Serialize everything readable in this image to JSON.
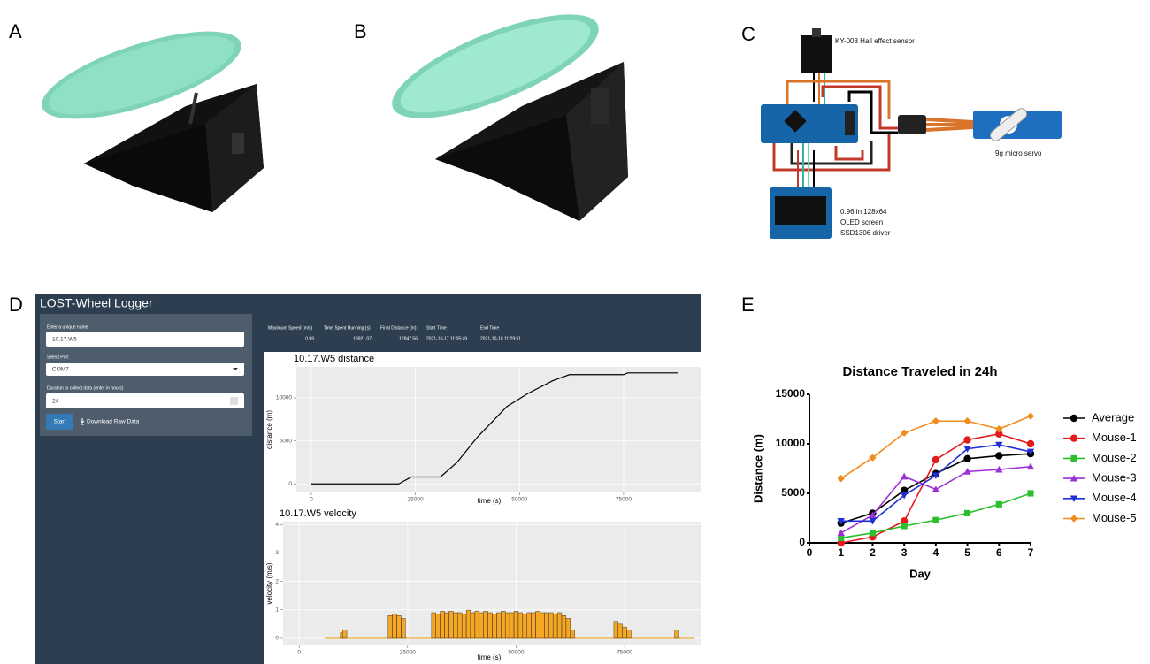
{
  "panel_labels": [
    "A",
    "B",
    "C",
    "D",
    "E"
  ],
  "circuit": {
    "sensor_label": "KY-003 Hall effect sensor",
    "servo_label": "9g micro servo",
    "screen_label": [
      "0.96 in 128x64",
      "OLED screen",
      "SSD1306 driver"
    ]
  },
  "app": {
    "title": "LOST-Wheel Logger",
    "fields": [
      {
        "label": "Enter a unique name",
        "value": "10.17.W5"
      },
      {
        "label": "Select Port",
        "value": "COM7"
      },
      {
        "label": "Duration to collect data (enter in hours)",
        "value": "24"
      }
    ],
    "start_button": "Start",
    "download_button": "Download Raw Data",
    "stats": {
      "headers": [
        "Maximum Speed (m/s)",
        "Time Spent Running (s)",
        "Final Distance (m)",
        "Start Time",
        "End Time"
      ],
      "values": [
        "0.99",
        "18921.07",
        "12847.56",
        "2021-10-17 11:05:49",
        "2021-10-18 11:29:51"
      ]
    }
  },
  "chart_data": [
    {
      "type": "line",
      "title": "10.17.W5 distance",
      "x_label": "time (s)",
      "y_label": "distance (m)",
      "x": [
        0,
        21000,
        24000,
        31000,
        35000,
        40000,
        47000,
        52000,
        58000,
        62000,
        75000,
        76000,
        88000
      ],
      "values": [
        0,
        0,
        800,
        800,
        2500,
        5500,
        9000,
        10500,
        12000,
        12700,
        12700,
        12900,
        12900
      ],
      "color": "#000000",
      "xlim": [
        -3600,
        93500
      ],
      "ylim": [
        -1000,
        13600
      ],
      "xticks": [
        0,
        25000,
        50000,
        75000
      ],
      "yticks": [
        0,
        5000,
        10000
      ],
      "grid": true
    },
    {
      "type": "bar",
      "title": "10.17.W5 velocity",
      "x_label": "time (s)",
      "y_label": "velocity (m/s)",
      "x": [
        10000,
        10500,
        21000,
        22000,
        23000,
        24000,
        31000,
        32000,
        33000,
        34000,
        35000,
        36000,
        37000,
        38000,
        39000,
        40000,
        41000,
        42000,
        43000,
        44000,
        45000,
        46000,
        47000,
        48000,
        49000,
        50000,
        51000,
        52000,
        53000,
        54000,
        55000,
        56000,
        57000,
        58000,
        59000,
        60000,
        61000,
        62000,
        63000,
        73000,
        74000,
        75000,
        76000,
        87000
      ],
      "values": [
        0.2,
        0.3,
        0.8,
        0.85,
        0.8,
        0.7,
        0.9,
        0.85,
        0.95,
        0.9,
        0.95,
        0.9,
        0.9,
        0.85,
        0.99,
        0.9,
        0.95,
        0.9,
        0.95,
        0.9,
        0.85,
        0.9,
        0.95,
        0.9,
        0.9,
        0.95,
        0.9,
        0.85,
        0.9,
        0.9,
        0.95,
        0.9,
        0.9,
        0.9,
        0.85,
        0.9,
        0.8,
        0.7,
        0.3,
        0.6,
        0.5,
        0.4,
        0.3,
        0.3
      ],
      "color": "#f5a623",
      "xlim": [
        -3700,
        92500
      ],
      "ylim": [
        -0.25,
        4.1
      ],
      "xticks": [
        0,
        25000,
        50000,
        75000
      ],
      "yticks": [
        0,
        1,
        2,
        3,
        4
      ],
      "grid": true
    },
    {
      "type": "line",
      "title": "Distance Traveled in 24h",
      "x_label": "Day",
      "y_label": "Distance (m)",
      "x": [
        1,
        2,
        3,
        4,
        5,
        6,
        7
      ],
      "xlim": [
        0,
        7
      ],
      "ylim": [
        0,
        15000
      ],
      "xticks": [
        0,
        1,
        2,
        3,
        4,
        5,
        6,
        7
      ],
      "yticks": [
        0,
        5000,
        10000,
        15000
      ],
      "grid": false,
      "legend": "right",
      "series": [
        {
          "name": "Average",
          "color": "#000000",
          "marker": "circle",
          "values": [
            2000,
            3000,
            5300,
            7000,
            8500,
            8800,
            9000
          ]
        },
        {
          "name": "Mouse-1",
          "color": "#e41a1c",
          "marker": "circle",
          "values": [
            0,
            600,
            2200,
            8400,
            10400,
            11000,
            10000
          ]
        },
        {
          "name": "Mouse-2",
          "color": "#2cbf2c",
          "marker": "square",
          "values": [
            500,
            1000,
            1700,
            2300,
            3000,
            3900,
            5000
          ]
        },
        {
          "name": "Mouse-3",
          "color": "#9b30d9",
          "marker": "triangle-up",
          "values": [
            1000,
            2800,
            6700,
            5400,
            7200,
            7400,
            7700
          ]
        },
        {
          "name": "Mouse-4",
          "color": "#1f2fd6",
          "marker": "triangle-down",
          "values": [
            2200,
            2200,
            4800,
            6800,
            9500,
            9900,
            9200
          ]
        },
        {
          "name": "Mouse-5",
          "color": "#f28c1e",
          "marker": "diamond",
          "values": [
            6500,
            8600,
            11100,
            12300,
            12300,
            11500,
            12800
          ]
        }
      ]
    }
  ]
}
